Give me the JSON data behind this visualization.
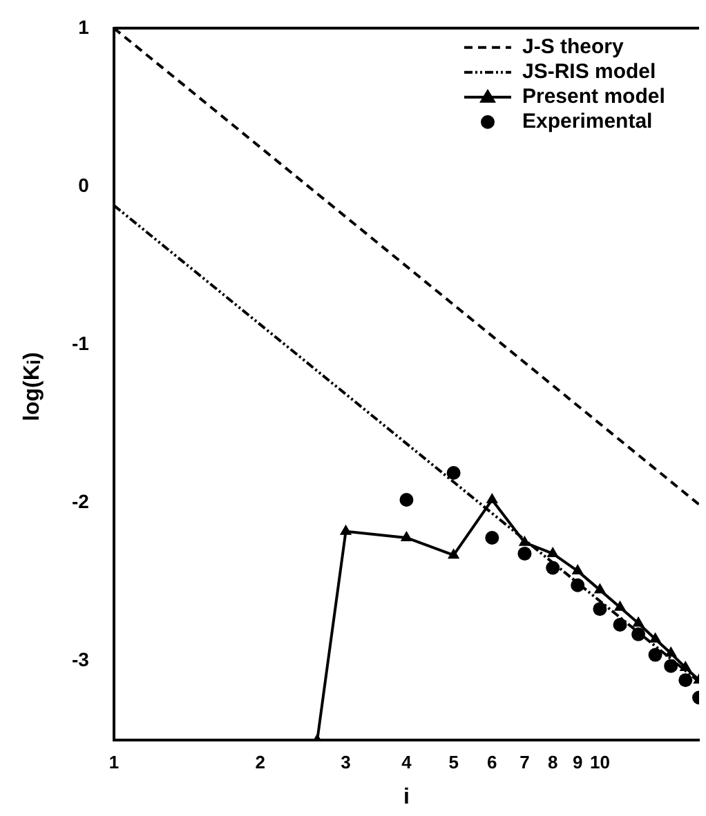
{
  "chart_data": {
    "type": "line",
    "xlabel": "i",
    "ylabel": "log(K$_{i}$)",
    "log": "x",
    "grid": false,
    "legend": "top right",
    "xlim": [
      1,
      16
    ],
    "ylim": [
      -3.5,
      1
    ],
    "xticks": [
      1,
      2,
      3,
      4,
      5,
      6,
      7,
      8,
      9,
      10
    ],
    "yticks": [
      -3,
      -2,
      -1,
      0,
      1
    ],
    "series": [
      {
        "name": "J-S theory",
        "color": "#000000",
        "line_style": "dashed",
        "marker": "none",
        "x": [
          1,
          16
        ],
        "values": [
          1,
          -2.01
        ]
      },
      {
        "name": "JS-RIS model",
        "color": "#000000",
        "line_style": "dotted",
        "marker": "none",
        "x": [
          1,
          16
        ],
        "values": [
          -0.12,
          -3.13
        ]
      },
      {
        "name": "Present model",
        "color": "#000000",
        "line_style": "solid",
        "marker": "triangle",
        "x": [
          2.62,
          3,
          4,
          5,
          6,
          7,
          8,
          9,
          10,
          11,
          12,
          13,
          14,
          15,
          16
        ],
        "values": [
          -3.5,
          -2.18,
          -2.22,
          -2.33,
          -1.98,
          -2.25,
          -2.32,
          -2.43,
          -2.55,
          -2.66,
          -2.76,
          -2.86,
          -2.95,
          -3.04,
          -3.12
        ]
      },
      {
        "name": "Experimental",
        "type": "scatter",
        "color": "#000000",
        "marker": "circle",
        "x": [
          4,
          5,
          6,
          7,
          8,
          9,
          10,
          11,
          12,
          13,
          14,
          15,
          16
        ],
        "values": [
          -1.98,
          -1.81,
          -2.22,
          -2.32,
          -2.41,
          -2.52,
          -2.67,
          -2.77,
          -2.83,
          -2.96,
          -3.03,
          -3.12,
          -3.23
        ]
      }
    ]
  }
}
